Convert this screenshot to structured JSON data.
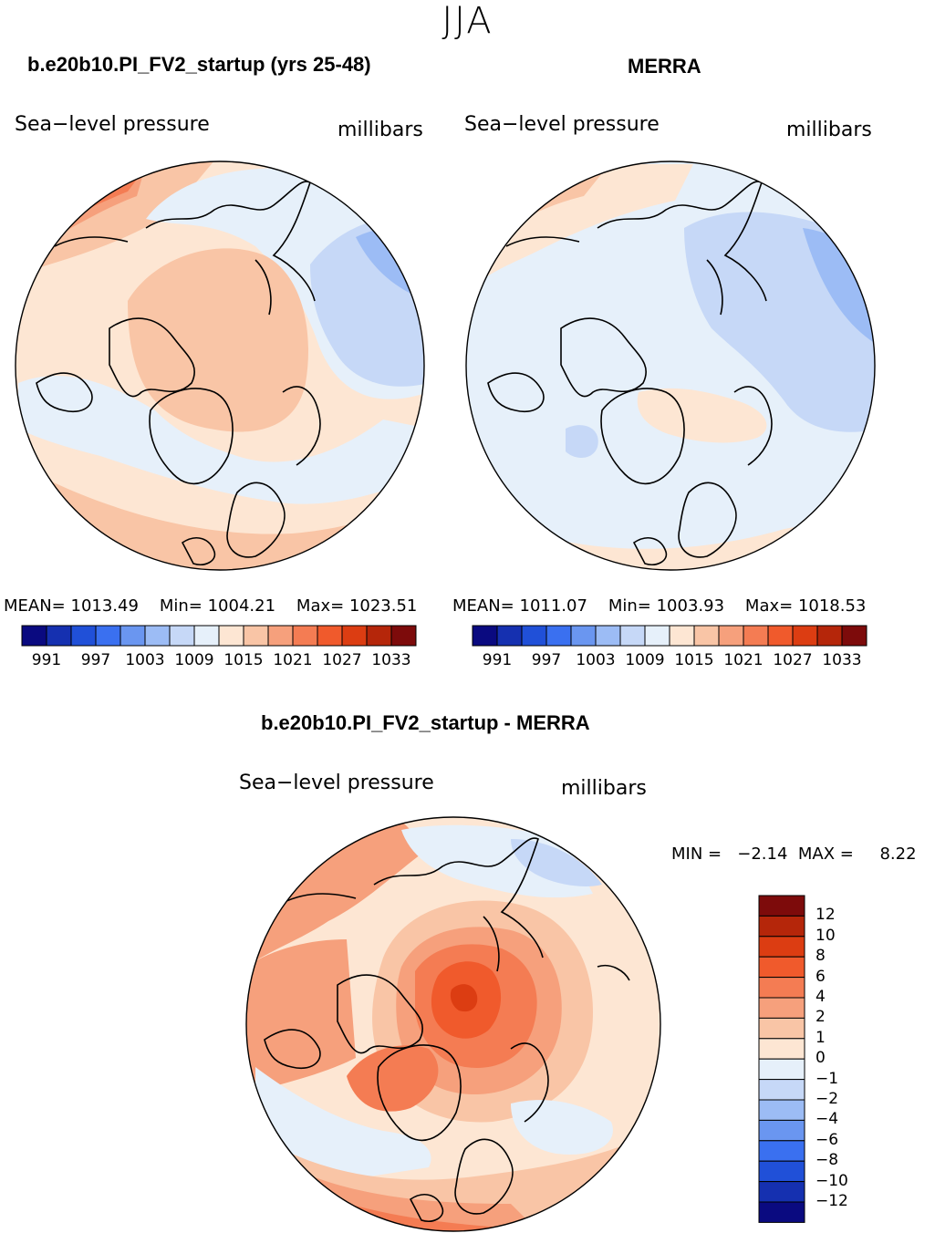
{
  "season": "JJA",
  "panels": [
    {
      "title": "b.e20b10.PI_FV2_startup (yrs 25-48)",
      "variable": "Sea−level pressure",
      "units": "millibars",
      "mean_label": "MEAN=",
      "mean": "1013.49",
      "min_label": "Min=",
      "min": "1004.21",
      "max_label": "Max=",
      "max": "1023.51"
    },
    {
      "title": "MERRA",
      "variable": "Sea−level pressure",
      "units": "millibars",
      "mean_label": "MEAN=",
      "mean": "1011.07",
      "min_label": "Min=",
      "min": "1003.93",
      "max_label": "Max=",
      "max": "1018.53"
    },
    {
      "title": "b.e20b10.PI_FV2_startup - MERRA",
      "variable": "Sea−level pressure",
      "units": "millibars",
      "minmax_text": "MIN =   −2.14  MAX =     8.22"
    }
  ],
  "colorbar_abs": {
    "labels": [
      "991",
      "997",
      "1003",
      "1009",
      "1015",
      "1021",
      "1027",
      "1033"
    ],
    "colors": [
      "#0a0a80",
      "#1530b0",
      "#2050d8",
      "#3a70f0",
      "#6a96f0",
      "#9cbcf5",
      "#c6d8f7",
      "#e6f0fa",
      "#fde6d3",
      "#f9c5a6",
      "#f6a07c",
      "#f47c53",
      "#f05a2c",
      "#dc3d12",
      "#b5260a",
      "#7d0b0b"
    ]
  },
  "colorbar_diff": {
    "labels": [
      "12",
      "10",
      "8",
      "6",
      "4",
      "2",
      "1",
      "0",
      "−1",
      "−2",
      "−4",
      "−6",
      "−8",
      "−10",
      "−12"
    ],
    "colors": [
      "#7d0b0b",
      "#b5260a",
      "#dc3d12",
      "#f05a2c",
      "#f47c53",
      "#f6a07c",
      "#f9c5a6",
      "#fde6d3",
      "#e6f0fa",
      "#c6d8f7",
      "#9cbcf5",
      "#6a96f0",
      "#3a70f0",
      "#2050d8",
      "#1530b0",
      "#0a0a80"
    ]
  }
}
